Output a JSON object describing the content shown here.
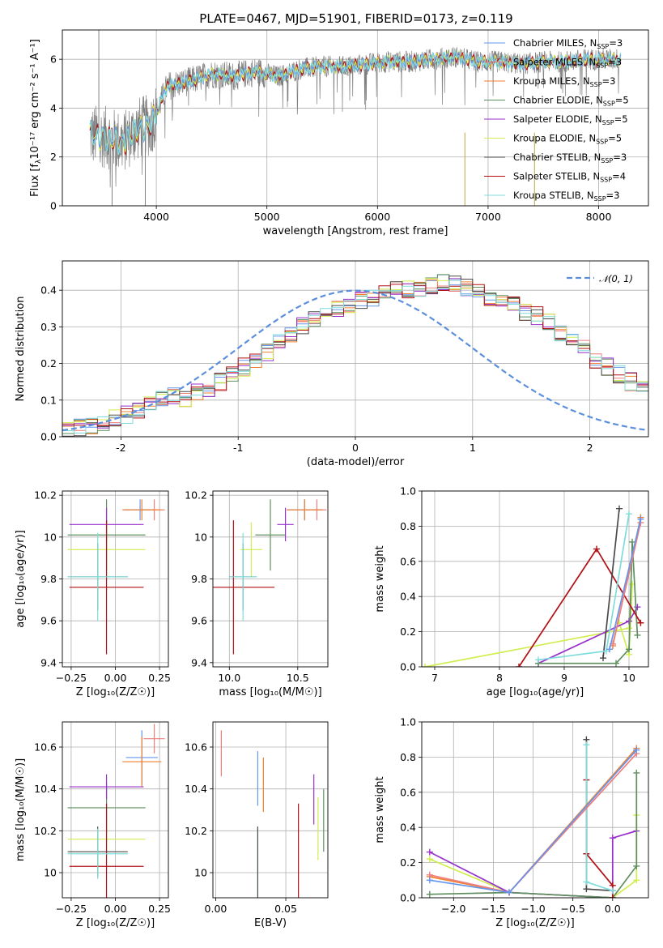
{
  "title": "PLATE=0467, MJD=51901, FIBERID=0173, z=0.119",
  "colors": {
    "Chabrier MILES": "#6495ed",
    "Salpeter MILES": "#ee7f7f",
    "Kroupa MILES": "#f08030",
    "Chabrier ELODIE": "#5f8f5f",
    "Salpeter ELODIE": "#9932cc",
    "Kroupa ELODIE": "#d0ee50",
    "Chabrier STELIB": "#4a4a4a",
    "Salpeter STELIB": "#b20f14",
    "Kroupa STELIB": "#7fdcdc",
    "data": "#808080",
    "normal": "#5b8fdd"
  },
  "legend_spectrum": [
    {
      "model": "Chabrier MILES",
      "pre": "Chabrier MILES, N",
      "sub": "SSP",
      "post": "=3"
    },
    {
      "model": "Salpeter MILES",
      "pre": "Salpeter MILES, N",
      "sub": "SSP",
      "post": "=3"
    },
    {
      "model": "Kroupa MILES",
      "pre": "Kroupa MILES, N",
      "sub": "SSP",
      "post": "=3"
    },
    {
      "model": "Chabrier ELODIE",
      "pre": "Chabrier ELODIE, N",
      "sub": "SSP",
      "post": "=5"
    },
    {
      "model": "Salpeter ELODIE",
      "pre": "Salpeter ELODIE, N",
      "sub": "SSP",
      "post": "=5"
    },
    {
      "model": "Kroupa ELODIE",
      "pre": "Kroupa ELODIE, N",
      "sub": "SSP",
      "post": "=5"
    },
    {
      "model": "Chabrier STELIB",
      "pre": "Chabrier STELIB, N",
      "sub": "SSP",
      "post": "=3"
    },
    {
      "model": "Salpeter STELIB",
      "pre": "Salpeter STELIB, N",
      "sub": "SSP",
      "post": "=4"
    },
    {
      "model": "Kroupa STELIB",
      "pre": "Kroupa STELIB, N",
      "sub": "SSP",
      "post": "=3"
    }
  ],
  "legend_hist": {
    "text": "𝒩(0, 1)"
  },
  "chart_data": [
    {
      "id": "spectrum",
      "type": "line",
      "xlabel": "wavelength [Angstrom, rest frame]",
      "ylabel_pre": "Flux [f",
      "ylabel_sub": "λ",
      "ylabel_post": "10⁻¹⁷ erg cm⁻² s⁻¹ A⁻¹]",
      "xlim": [
        3150,
        8450
      ],
      "ylim": [
        0,
        7.2
      ],
      "xticks": [
        4000,
        5000,
        6000,
        7000,
        8000
      ],
      "yticks": [
        0,
        2,
        4,
        6
      ],
      "continuum_knots": {
        "x": [
          3400,
          3550,
          3700,
          3850,
          3950,
          4100,
          4300,
          4500,
          4700,
          4900,
          5100,
          5300,
          5500,
          5700,
          5900,
          6100,
          6300,
          6500,
          6700,
          6900,
          7100,
          7300,
          7500,
          7700,
          7900,
          8100,
          8200
        ],
        "y": [
          2.9,
          2.8,
          2.6,
          3.2,
          3.3,
          4.9,
          5.1,
          5.4,
          5.3,
          5.5,
          5.3,
          5.6,
          5.7,
          5.7,
          5.8,
          5.9,
          5.9,
          6.0,
          6.1,
          5.9,
          5.9,
          5.8,
          5.9,
          5.9,
          6.0,
          6.0,
          6.0
        ]
      },
      "x_range": [
        3400,
        8200
      ]
    },
    {
      "id": "residual-histogram",
      "type": "step",
      "xlabel": "(data-model)/error",
      "ylabel": "Normed distribution",
      "xlim": [
        -2.5,
        2.5
      ],
      "ylim": [
        0,
        0.48
      ],
      "xticks": [
        -2,
        -1,
        0,
        1,
        2
      ],
      "yticks": [
        0.0,
        0.1,
        0.2,
        0.3,
        0.4
      ],
      "bin_width": 0.1,
      "bin_start": -2.5,
      "base_values": [
        0.02,
        0.025,
        0.03,
        0.04,
        0.05,
        0.06,
        0.07,
        0.085,
        0.1,
        0.11,
        0.1,
        0.12,
        0.13,
        0.15,
        0.17,
        0.19,
        0.21,
        0.23,
        0.26,
        0.28,
        0.3,
        0.32,
        0.34,
        0.35,
        0.36,
        0.37,
        0.38,
        0.39,
        0.4,
        0.4,
        0.4,
        0.41,
        0.42,
        0.42,
        0.41,
        0.4,
        0.38,
        0.37,
        0.36,
        0.34,
        0.33,
        0.31,
        0.28,
        0.26,
        0.24,
        0.21,
        0.19,
        0.17,
        0.15,
        0.14
      ],
      "normal_curve": {
        "mu": 0,
        "sigma": 1
      }
    },
    {
      "id": "age-vs-Z",
      "type": "errorbar",
      "xlabel": "Z [log₁₀(Z/Z☉)]",
      "ylabel": "age  [log₁₀(age/yr)]",
      "xlim": [
        -0.3,
        0.3
      ],
      "ylim": [
        9.38,
        10.22
      ],
      "xticks": [
        -0.25,
        0.0,
        0.25
      ],
      "xticklabels": [
        "−0.25",
        "0.00",
        "0.25"
      ],
      "yticks": [
        9.4,
        9.6,
        9.8,
        10.0,
        10.2
      ],
      "points": [
        {
          "model": "Chabrier MILES",
          "x": 0.14,
          "xerr": 0.09,
          "y": 10.13,
          "yerr": 0.05
        },
        {
          "model": "Salpeter MILES",
          "x": 0.22,
          "xerr": 0.06,
          "y": 10.13,
          "yerr": 0.05
        },
        {
          "model": "Kroupa MILES",
          "x": 0.15,
          "xerr": 0.11,
          "y": 10.13,
          "yerr": 0.05
        },
        {
          "model": "Chabrier ELODIE",
          "x": -0.05,
          "xerr": 0.22,
          "y": 10.01,
          "yerr": 0.17
        },
        {
          "model": "Salpeter ELODIE",
          "x": -0.05,
          "xerr": 0.21,
          "y": 10.06,
          "yerr": 0.08
        },
        {
          "model": "Kroupa ELODIE",
          "x": -0.05,
          "xerr": 0.22,
          "y": 9.94,
          "yerr": 0.13
        },
        {
          "model": "Chabrier STELIB",
          "x": -0.1,
          "xerr": 0.17,
          "y": 9.81,
          "yerr": 0.16
        },
        {
          "model": "Salpeter STELIB",
          "x": -0.05,
          "xerr": 0.21,
          "y": 9.76,
          "yerr": 0.32
        },
        {
          "model": "Kroupa STELIB",
          "x": -0.1,
          "xerr": 0.17,
          "y": 9.81,
          "yerr": 0.21
        }
      ]
    },
    {
      "id": "age-vs-mass",
      "type": "errorbar",
      "xlabel": "mass [log₁₀(M/M☉)]",
      "ylabel": "",
      "xlim": [
        9.88,
        10.72
      ],
      "ylim": [
        9.38,
        10.22
      ],
      "xticks": [
        10.0,
        10.5
      ],
      "xticklabels": [
        "10.0",
        "10.5"
      ],
      "yticks": [
        9.4,
        9.6,
        9.8,
        10.0,
        10.2
      ],
      "points": [
        {
          "model": "Chabrier MILES",
          "x": 10.55,
          "xerr": 0.13,
          "y": 10.13,
          "yerr": 0.05
        },
        {
          "model": "Salpeter MILES",
          "x": 10.64,
          "xerr": 0.07,
          "y": 10.13,
          "yerr": 0.05
        },
        {
          "model": "Kroupa MILES",
          "x": 10.55,
          "xerr": 0.13,
          "y": 10.13,
          "yerr": 0.05
        },
        {
          "model": "Chabrier ELODIE",
          "x": 10.3,
          "xerr": 0.11,
          "y": 10.01,
          "yerr": 0.17
        },
        {
          "model": "Salpeter ELODIE",
          "x": 10.41,
          "xerr": 0.06,
          "y": 10.06,
          "yerr": 0.08
        },
        {
          "model": "Kroupa ELODIE",
          "x": 10.16,
          "xerr": 0.08,
          "y": 9.94,
          "yerr": 0.13
        },
        {
          "model": "Chabrier STELIB",
          "x": 10.1,
          "xerr": 0.1,
          "y": 9.81,
          "yerr": 0.16
        },
        {
          "model": "Salpeter STELIB",
          "x": 10.03,
          "xerr": 0.3,
          "y": 9.76,
          "yerr": 0.32
        },
        {
          "model": "Kroupa STELIB",
          "x": 10.1,
          "xerr": 0.1,
          "y": 9.81,
          "yerr": 0.21
        }
      ]
    },
    {
      "id": "weight-vs-age",
      "type": "line",
      "xlabel": "age  [log₁₀(age/yr)]",
      "ylabel": "mass weight",
      "xlim": [
        6.8,
        10.3
      ],
      "ylim": [
        0,
        1
      ],
      "xticks": [
        7,
        8,
        9,
        10
      ],
      "yticks": [
        0.0,
        0.2,
        0.4,
        0.6,
        0.8,
        1.0
      ],
      "series": [
        {
          "model": "Kroupa ELODIE",
          "x": [
            6.85,
            10.0,
            10.05,
            10.0,
            9.85
          ],
          "y": [
            0.0,
            0.22,
            0.47,
            0.07,
            0.25
          ]
        },
        {
          "model": "Salpeter ELODIE",
          "x": [
            8.6,
            10.0,
            10.13
          ],
          "y": [
            0.02,
            0.26,
            0.34
          ]
        },
        {
          "model": "Chabrier ELODIE",
          "x": [
            8.6,
            9.8,
            10.0,
            10.05,
            10.13
          ],
          "y": [
            0.02,
            0.02,
            0.1,
            0.71,
            0.18
          ]
        },
        {
          "model": "Salpeter STELIB",
          "x": [
            8.3,
            9.5,
            10.18
          ],
          "y": [
            0.0,
            0.67,
            0.25
          ]
        },
        {
          "model": "Chabrier STELIB",
          "x": [
            9.6,
            9.85
          ],
          "y": [
            0.05,
            0.9
          ]
        },
        {
          "model": "Kroupa STELIB",
          "x": [
            8.6,
            9.65,
            10.0
          ],
          "y": [
            0.04,
            0.09,
            0.87
          ]
        },
        {
          "model": "Kroupa MILES",
          "x": [
            9.75,
            10.18
          ],
          "y": [
            0.12,
            0.85
          ]
        },
        {
          "model": "Salpeter MILES",
          "x": [
            9.75,
            10.18
          ],
          "y": [
            0.13,
            0.82
          ]
        },
        {
          "model": "Chabrier MILES",
          "x": [
            9.7,
            10.18
          ],
          "y": [
            0.1,
            0.84
          ]
        }
      ]
    },
    {
      "id": "mass-vs-Z",
      "type": "errorbar",
      "xlabel": "Z [log₁₀(Z/Z☉)]",
      "ylabel": "mass [log₁₀(M/M☉)]",
      "xlim": [
        -0.3,
        0.3
      ],
      "ylim": [
        9.88,
        10.72
      ],
      "xticks": [
        -0.25,
        0.0,
        0.25
      ],
      "xticklabels": [
        "−0.25",
        "0.00",
        "0.25"
      ],
      "yticks": [
        10.0,
        10.2,
        10.4,
        10.6
      ],
      "points": [
        {
          "model": "Chabrier MILES",
          "x": 0.15,
          "xerr": 0.09,
          "y": 10.55,
          "yerr": 0.13
        },
        {
          "model": "Salpeter MILES",
          "x": 0.22,
          "xerr": 0.06,
          "y": 10.64,
          "yerr": 0.07
        },
        {
          "model": "Kroupa MILES",
          "x": 0.15,
          "xerr": 0.11,
          "y": 10.53,
          "yerr": 0.12
        },
        {
          "model": "Chabrier ELODIE",
          "x": -0.05,
          "xerr": 0.22,
          "y": 10.31,
          "yerr": 0.12
        },
        {
          "model": "Salpeter ELODIE",
          "x": -0.05,
          "xerr": 0.21,
          "y": 10.41,
          "yerr": 0.06
        },
        {
          "model": "Kroupa ELODIE",
          "x": -0.05,
          "xerr": 0.22,
          "y": 10.16,
          "yerr": 0.08
        },
        {
          "model": "Chabrier STELIB",
          "x": -0.1,
          "xerr": 0.17,
          "y": 10.1,
          "yerr": 0.12
        },
        {
          "model": "Salpeter STELIB",
          "x": -0.05,
          "xerr": 0.21,
          "y": 10.03,
          "yerr": 0.3
        },
        {
          "model": "Kroupa STELIB",
          "x": -0.1,
          "xerr": 0.17,
          "y": 10.09,
          "yerr": 0.12
        }
      ]
    },
    {
      "id": "mass-vs-ebv",
      "type": "errorbar",
      "xlabel": "E(B-V)",
      "ylabel": "",
      "xlim": [
        -0.002,
        0.08
      ],
      "ylim": [
        9.88,
        10.72
      ],
      "xticks": [
        0.0,
        0.05
      ],
      "xticklabels": [
        "0.00",
        "0.05"
      ],
      "yticks": [
        10.0,
        10.2,
        10.4,
        10.6
      ],
      "points": [
        {
          "model": "Salpeter MILES",
          "x": 0.004,
          "y": 10.57,
          "yerr": 0.11
        },
        {
          "model": "Chabrier MILES",
          "x": 0.03,
          "y": 10.45,
          "yerr": 0.13
        },
        {
          "model": "Kroupa MILES",
          "x": 0.034,
          "y": 10.42,
          "yerr": 0.13
        },
        {
          "model": "Kroupa STELIB",
          "x": 0.03,
          "y": 10.05,
          "yerr": 0.17
        },
        {
          "model": "Chabrier STELIB",
          "x": 0.03,
          "y": 10.05,
          "yerr": 0.17
        },
        {
          "model": "Salpeter STELIB",
          "x": 0.059,
          "y": 10.03,
          "yerr": 0.3
        },
        {
          "model": "Salpeter ELODIE",
          "x": 0.07,
          "y": 10.35,
          "yerr": 0.12
        },
        {
          "model": "Kroupa ELODIE",
          "x": 0.073,
          "y": 10.21,
          "yerr": 0.15
        },
        {
          "model": "Chabrier ELODIE",
          "x": 0.077,
          "y": 10.25,
          "yerr": 0.15
        }
      ]
    },
    {
      "id": "weight-vs-Z",
      "type": "line",
      "xlabel": "Z [log₁₀(Z/Z☉)]",
      "ylabel": "mass weight",
      "xlim": [
        -2.4,
        0.45
      ],
      "ylim": [
        0,
        1
      ],
      "xticks": [
        -2.0,
        -1.5,
        -1.0,
        -0.5,
        0.0
      ],
      "xticklabels": [
        "−2.0",
        "−1.5",
        "−1.0",
        "−0.5",
        "0.0"
      ],
      "yticks": [
        0.0,
        0.2,
        0.4,
        0.6,
        0.8,
        1.0
      ],
      "series": [
        {
          "model": "Kroupa ELODIE",
          "x": [
            -2.3,
            -1.3,
            0.0,
            0.3,
            0.3
          ],
          "y": [
            0.22,
            0.03,
            0.0,
            0.1,
            0.47
          ]
        },
        {
          "model": "Salpeter ELODIE",
          "x": [
            -2.3,
            -1.3,
            0.0,
            0.0,
            0.3
          ],
          "y": [
            0.26,
            0.03,
            0.0,
            0.34,
            0.38
          ]
        },
        {
          "model": "Chabrier ELODIE",
          "x": [
            -2.3,
            -1.3,
            0.0,
            0.3,
            0.3
          ],
          "y": [
            0.02,
            0.03,
            0.0,
            0.18,
            0.71
          ]
        },
        {
          "model": "Salpeter STELIB",
          "x": [
            -0.33,
            -0.33,
            0.0,
            0.0
          ],
          "y": [
            0.67,
            0.25,
            0.07,
            0.0
          ]
        },
        {
          "model": "Chabrier STELIB",
          "x": [
            -0.33,
            -0.33,
            0.0
          ],
          "y": [
            0.9,
            0.05,
            0.04
          ]
        },
        {
          "model": "Kroupa STELIB",
          "x": [
            -0.33,
            -0.33,
            0.0
          ],
          "y": [
            0.87,
            0.09,
            0.04
          ]
        },
        {
          "model": "Kroupa MILES",
          "x": [
            -2.3,
            -1.3,
            0.3
          ],
          "y": [
            0.12,
            0.03,
            0.85
          ]
        },
        {
          "model": "Salpeter MILES",
          "x": [
            -2.3,
            -1.3,
            0.3
          ],
          "y": [
            0.13,
            0.03,
            0.82
          ]
        },
        {
          "model": "Chabrier MILES",
          "x": [
            -2.3,
            -1.3,
            0.3
          ],
          "y": [
            0.1,
            0.03,
            0.84
          ]
        }
      ]
    }
  ]
}
